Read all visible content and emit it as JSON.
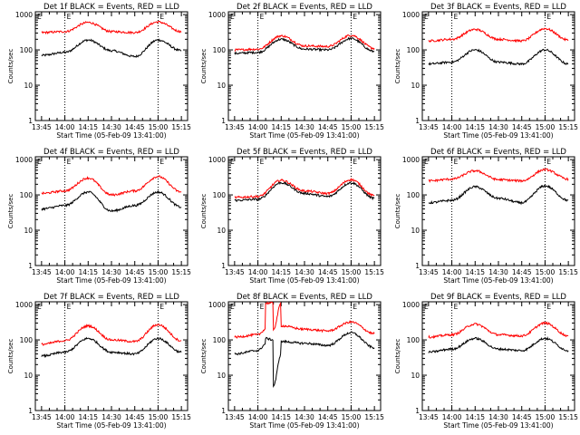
{
  "figure": {
    "xlabel": "Start Time (05-Feb-09 13:41:00)",
    "ylabel": "Counts/sec",
    "x_ticks": [
      "13:45",
      "14:00",
      "14:15",
      "14:30",
      "14:45",
      "15:00",
      "15:15"
    ],
    "y_ticks": [
      "1",
      "10",
      "100",
      "1000"
    ],
    "marker_E": "E",
    "dotted_lines_at": [
      "14:00",
      "15:00"
    ]
  },
  "chart_data": [
    {
      "type": "line",
      "title": "Det 1f BLACK = Events, RED = LLD",
      "xlabel": "Start Time (05-Feb-09 13:41:00)",
      "ylabel": "Counts/sec",
      "x_range": [
        "13:41",
        "15:19"
      ],
      "ylim": [
        1,
        1200
      ],
      "y_scale": "log",
      "x": [
        "13:45",
        "14:00",
        "14:15",
        "14:30",
        "14:45",
        "15:00",
        "15:15"
      ],
      "series": [
        {
          "name": "Events",
          "color": "#000000",
          "values": [
            70,
            85,
            190,
            95,
            65,
            190,
            95
          ]
        },
        {
          "name": "LLD",
          "color": "#ff0000",
          "values": [
            310,
            330,
            600,
            330,
            310,
            620,
            330
          ]
        }
      ]
    },
    {
      "type": "line",
      "title": "Det 2f BLACK = Events, RED = LLD",
      "xlabel": "Start Time (05-Feb-09 13:41:00)",
      "ylabel": "Counts/sec",
      "x_range": [
        "13:41",
        "15:19"
      ],
      "ylim": [
        1,
        1200
      ],
      "y_scale": "log",
      "x": [
        "13:45",
        "14:00",
        "14:15",
        "14:30",
        "14:45",
        "15:00",
        "15:15"
      ],
      "series": [
        {
          "name": "Events",
          "color": "#000000",
          "values": [
            80,
            85,
            200,
            105,
            100,
            210,
            90
          ]
        },
        {
          "name": "LLD",
          "color": "#ff0000",
          "values": [
            100,
            105,
            250,
            130,
            125,
            260,
            110
          ]
        }
      ]
    },
    {
      "type": "line",
      "title": "Det 3f BLACK = Events, RED = LLD",
      "xlabel": "Start Time (05-Feb-09 13:41:00)",
      "ylabel": "Counts/sec",
      "x_range": [
        "13:41",
        "15:19"
      ],
      "ylim": [
        1,
        1200
      ],
      "y_scale": "log",
      "x": [
        "13:45",
        "14:00",
        "14:15",
        "14:30",
        "14:45",
        "15:00",
        "15:15"
      ],
      "series": [
        {
          "name": "Events",
          "color": "#000000",
          "values": [
            40,
            45,
            100,
            45,
            40,
            100,
            40
          ]
        },
        {
          "name": "LLD",
          "color": "#ff0000",
          "values": [
            180,
            200,
            380,
            200,
            180,
            400,
            190
          ]
        }
      ]
    },
    {
      "type": "line",
      "title": "Det 4f BLACK = Events, RED = LLD",
      "xlabel": "Start Time (05-Feb-09 13:41:00)",
      "ylabel": "Counts/sec",
      "x_range": [
        "13:41",
        "15:19"
      ],
      "ylim": [
        1,
        1200
      ],
      "y_scale": "log",
      "x": [
        "13:45",
        "14:00",
        "14:15",
        "14:30",
        "14:45",
        "15:00",
        "15:15"
      ],
      "series": [
        {
          "name": "Events",
          "color": "#000000",
          "values": [
            40,
            50,
            120,
            35,
            50,
            120,
            45
          ]
        },
        {
          "name": "LLD",
          "color": "#ff0000",
          "values": [
            110,
            130,
            300,
            100,
            130,
            330,
            120
          ]
        }
      ]
    },
    {
      "type": "line",
      "title": "Det 5f BLACK = Events, RED = LLD",
      "xlabel": "Start Time (05-Feb-09 13:41:00)",
      "ylabel": "Counts/sec",
      "x_range": [
        "13:41",
        "15:19"
      ],
      "ylim": [
        1,
        1200
      ],
      "y_scale": "log",
      "x": [
        "13:45",
        "14:00",
        "14:15",
        "14:30",
        "14:45",
        "15:00",
        "15:15"
      ],
      "series": [
        {
          "name": "Events",
          "color": "#000000",
          "values": [
            70,
            75,
            220,
            110,
            90,
            220,
            80
          ]
        },
        {
          "name": "LLD",
          "color": "#ff0000",
          "values": [
            85,
            90,
            260,
            130,
            110,
            270,
            95
          ]
        }
      ]
    },
    {
      "type": "line",
      "title": "Det 6f BLACK = Events, RED = LLD",
      "xlabel": "Start Time (05-Feb-09 13:41:00)",
      "ylabel": "Counts/sec",
      "x_range": [
        "13:41",
        "15:19"
      ],
      "ylim": [
        1,
        1200
      ],
      "y_scale": "log",
      "x": [
        "13:45",
        "14:00",
        "14:15",
        "14:30",
        "14:45",
        "15:00",
        "15:15"
      ],
      "series": [
        {
          "name": "Events",
          "color": "#000000",
          "values": [
            60,
            70,
            170,
            80,
            60,
            180,
            70
          ]
        },
        {
          "name": "LLD",
          "color": "#ff0000",
          "values": [
            250,
            280,
            480,
            270,
            250,
            520,
            280
          ]
        }
      ]
    },
    {
      "type": "line",
      "title": "Det 7f BLACK = Events, RED = LLD",
      "xlabel": "Start Time (05-Feb-09 13:41:00)",
      "ylabel": "Counts/sec",
      "x_range": [
        "13:41",
        "15:19"
      ],
      "ylim": [
        1,
        1200
      ],
      "y_scale": "log",
      "x": [
        "13:45",
        "14:00",
        "14:15",
        "14:30",
        "14:45",
        "15:00",
        "15:15"
      ],
      "series": [
        {
          "name": "Events",
          "color": "#000000",
          "values": [
            35,
            45,
            110,
            45,
            40,
            110,
            45
          ]
        },
        {
          "name": "LLD",
          "color": "#ff0000",
          "values": [
            75,
            95,
            250,
            100,
            90,
            270,
            95
          ]
        }
      ]
    },
    {
      "type": "line",
      "title": "Det 8f BLACK = Events, RED = LLD",
      "xlabel": "Start Time (05-Feb-09 13:41:00)",
      "ylabel": "Counts/sec",
      "x_range": [
        "13:41",
        "15:19"
      ],
      "ylim": [
        1,
        1200
      ],
      "y_scale": "log",
      "x": [
        "13:45",
        "14:00",
        "14:05",
        "14:05",
        "14:10",
        "14:10",
        "14:15",
        "14:15",
        "14:30",
        "14:45",
        "15:00",
        "15:15"
      ],
      "series": [
        {
          "name": "Events",
          "color": "#000000",
          "values": [
            40,
            50,
            75,
            110,
            100,
            5,
            40,
            90,
            80,
            70,
            160,
            60
          ]
        },
        {
          "name": "LLD",
          "color": "#ff0000",
          "values": [
            120,
            140,
            200,
            1100,
            1100,
            200,
            1100,
            250,
            200,
            180,
            320,
            150
          ]
        }
      ]
    },
    {
      "type": "line",
      "title": "Det 9f BLACK = Events, RED = LLD",
      "xlabel": "Start Time (05-Feb-09 13:41:00)",
      "ylabel": "Counts/sec",
      "x_range": [
        "13:41",
        "15:19"
      ],
      "ylim": [
        1,
        1200
      ],
      "y_scale": "log",
      "x": [
        "13:45",
        "14:00",
        "14:15",
        "14:30",
        "14:45",
        "15:00",
        "15:15"
      ],
      "series": [
        {
          "name": "Events",
          "color": "#000000",
          "values": [
            45,
            55,
            110,
            55,
            50,
            110,
            50
          ]
        },
        {
          "name": "LLD",
          "color": "#ff0000",
          "values": [
            120,
            140,
            280,
            140,
            130,
            300,
            130
          ]
        }
      ]
    }
  ]
}
